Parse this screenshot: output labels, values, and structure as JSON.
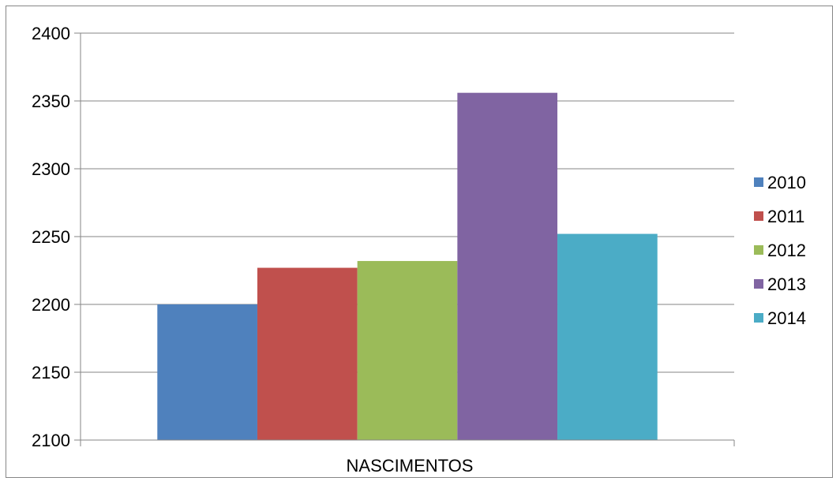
{
  "chart_data": {
    "type": "bar",
    "categories": [
      "NASCIMENTOS"
    ],
    "series": [
      {
        "name": "2010",
        "values": [
          2200
        ],
        "color": "#4F81BD"
      },
      {
        "name": "2011",
        "values": [
          2227
        ],
        "color": "#C0504D"
      },
      {
        "name": "2012",
        "values": [
          2232
        ],
        "color": "#9BBB59"
      },
      {
        "name": "2013",
        "values": [
          2356
        ],
        "color": "#8064A2"
      },
      {
        "name": "2014",
        "values": [
          2252
        ],
        "color": "#4BACC6"
      }
    ],
    "title": "",
    "xlabel": "",
    "ylabel": "",
    "ylim": [
      2100,
      2400
    ],
    "yticks": [
      "2100",
      "2150",
      "2200",
      "2250",
      "2300",
      "2350",
      "2400"
    ],
    "grid": true,
    "legend_position": "right"
  }
}
